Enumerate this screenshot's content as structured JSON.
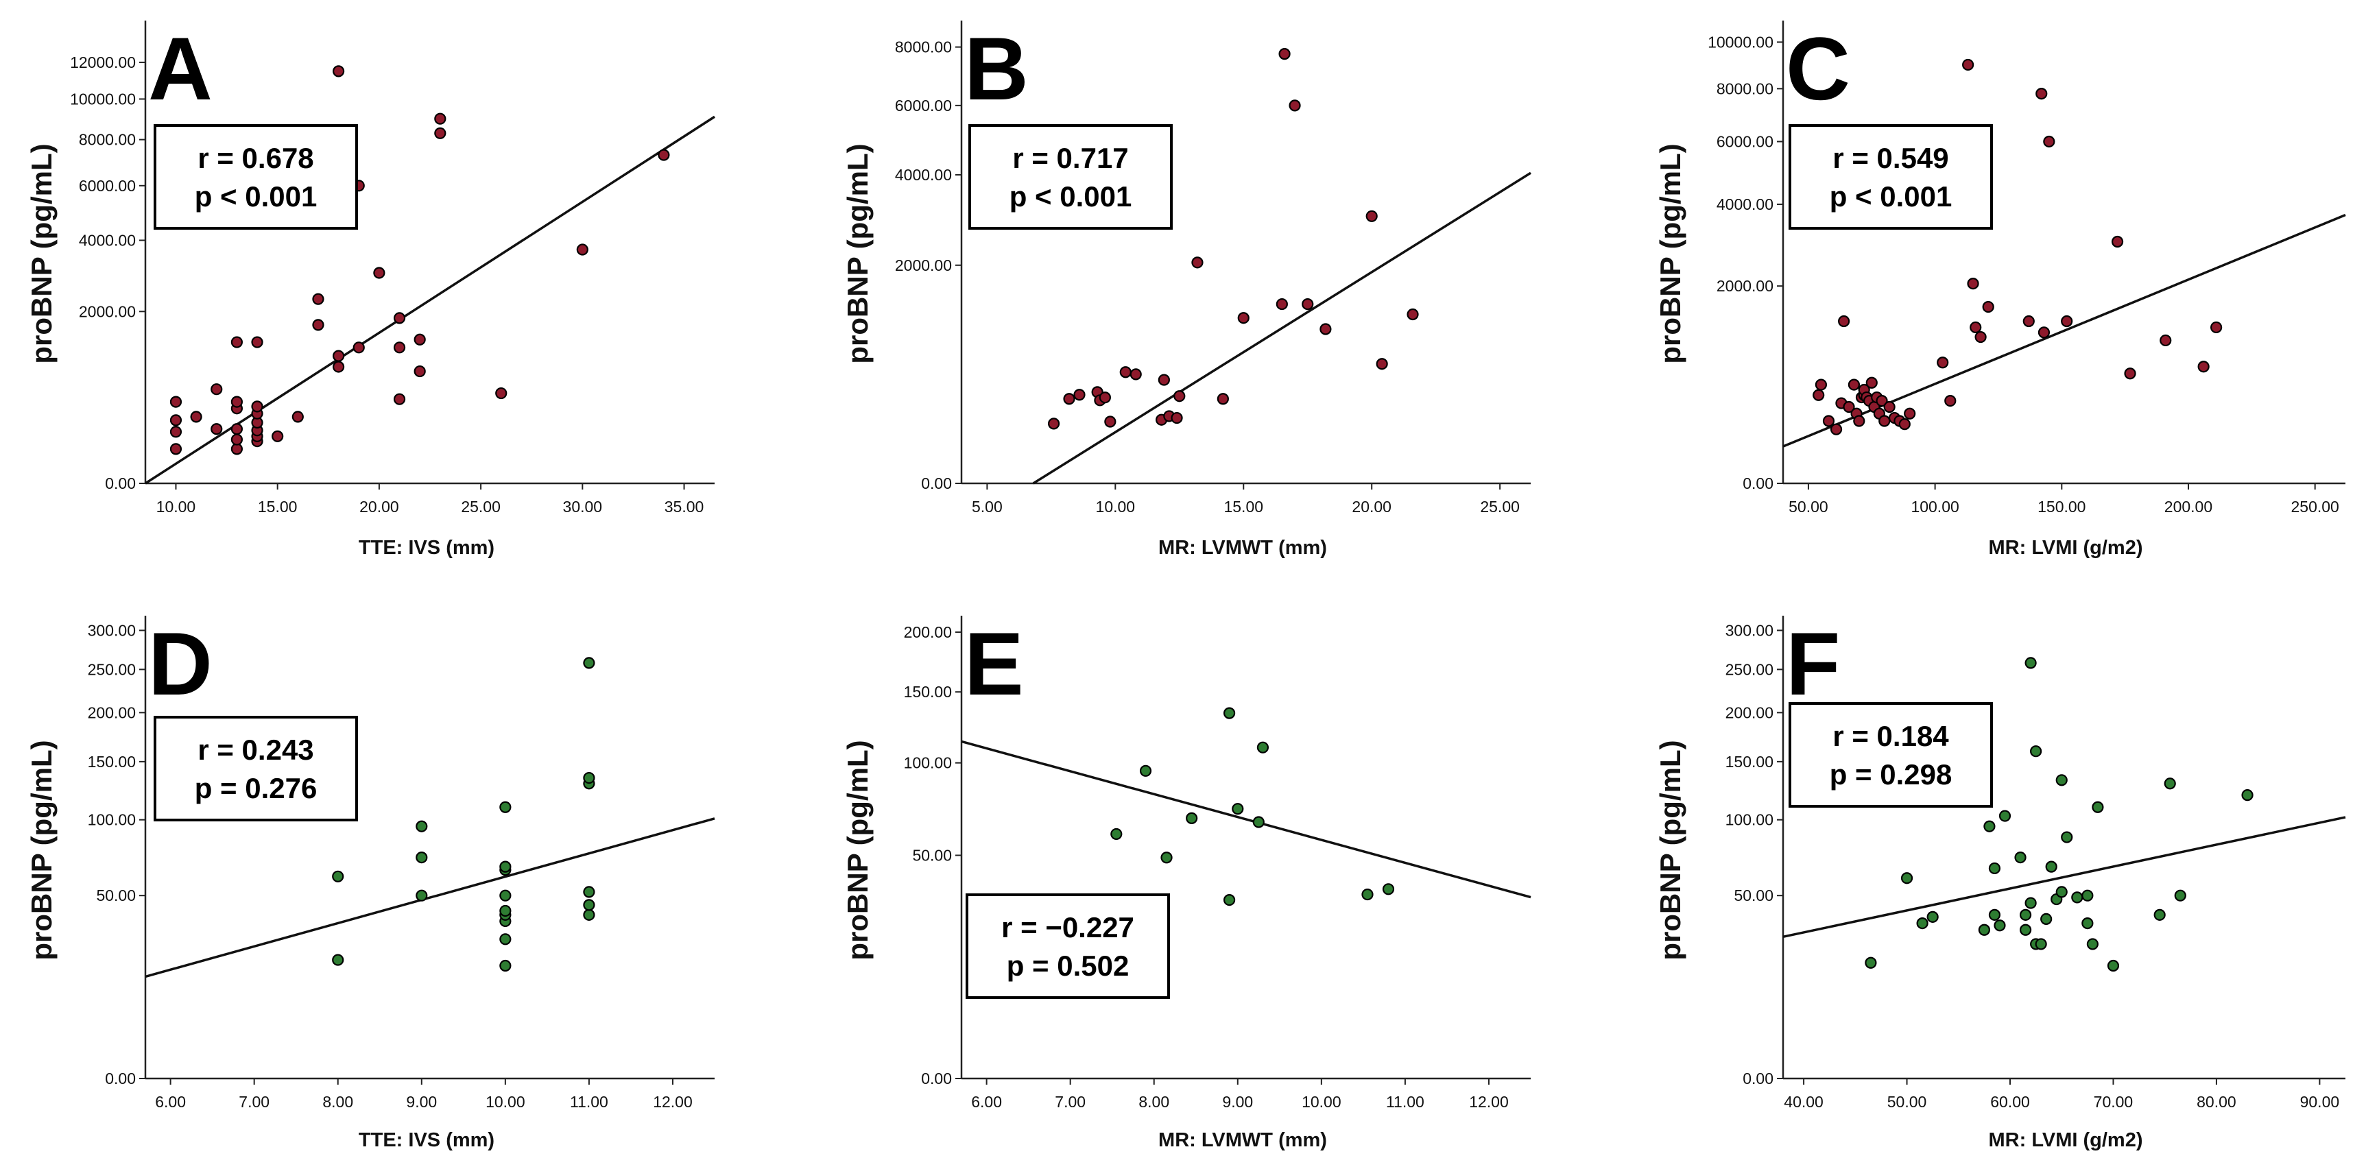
{
  "chart_data": [
    {
      "panel": "A",
      "type": "scatter",
      "xlabel": "TTE: IVS (mm)",
      "ylabel": "proBNP (pg/mL)",
      "xlim": [
        8.5,
        36.5
      ],
      "xticks": [
        10,
        15,
        20,
        25,
        30,
        35
      ],
      "xtick_labels": [
        "10.00",
        "15.00",
        "20.00",
        "25.00",
        "30.00",
        "35.00"
      ],
      "yscale": "sqrt",
      "ylim": [
        0,
        14500
      ],
      "yticks": [
        0,
        2000,
        4000,
        6000,
        8000,
        10000,
        12000
      ],
      "ytick_labels": [
        "0.00",
        "2000.00",
        "4000.00",
        "6000.00",
        "8000.00",
        "10000.00",
        "12000.00"
      ],
      "point_color": "#8e1a2c",
      "stat_r": "r = 0.678",
      "stat_p": "p < 0.001",
      "fit": [
        [
          8.5,
          0
        ],
        [
          36.5,
          9100
        ]
      ],
      "points": [
        [
          10,
          80
        ],
        [
          10,
          180
        ],
        [
          10,
          270
        ],
        [
          10,
          450
        ],
        [
          11,
          300
        ],
        [
          12,
          200
        ],
        [
          12,
          600
        ],
        [
          13,
          80
        ],
        [
          13,
          130
        ],
        [
          13,
          200
        ],
        [
          13,
          380
        ],
        [
          13,
          450
        ],
        [
          13,
          1350
        ],
        [
          14,
          120
        ],
        [
          14,
          150
        ],
        [
          14,
          190
        ],
        [
          14,
          250
        ],
        [
          14,
          330
        ],
        [
          14,
          400
        ],
        [
          14,
          1350
        ],
        [
          15,
          150
        ],
        [
          16,
          300
        ],
        [
          17,
          1700
        ],
        [
          17,
          2300
        ],
        [
          18,
          920
        ],
        [
          18,
          1100
        ],
        [
          18,
          11500
        ],
        [
          19,
          1250
        ],
        [
          19,
          6000
        ],
        [
          20,
          3000
        ],
        [
          21,
          480
        ],
        [
          21,
          1250
        ],
        [
          21,
          1850
        ],
        [
          22,
          850
        ],
        [
          22,
          1400
        ],
        [
          23,
          8300
        ],
        [
          23,
          9000
        ],
        [
          26,
          550
        ],
        [
          30,
          3700
        ],
        [
          34,
          7300
        ]
      ]
    },
    {
      "panel": "B",
      "type": "scatter",
      "xlabel": "MR: LVMWT (mm)",
      "ylabel": "proBNP (pg/mL)",
      "xlim": [
        4,
        26.2
      ],
      "xticks": [
        5,
        10,
        15,
        20,
        25
      ],
      "xtick_labels": [
        "5.00",
        "10.00",
        "15.00",
        "20.00",
        "25.00"
      ],
      "yscale": "sqrt",
      "ylim": [
        0,
        9000
      ],
      "yticks": [
        0,
        2000,
        4000,
        6000,
        8000
      ],
      "ytick_labels": [
        "0.00",
        "2000.00",
        "4000.00",
        "6000.00",
        "8000.00"
      ],
      "point_color": "#8e1a2c",
      "stat_r": "r = 0.717",
      "stat_p": "p < 0.001",
      "fit": [
        [
          6.8,
          0
        ],
        [
          26.2,
          4050
        ]
      ],
      "points": [
        [
          7.6,
          150
        ],
        [
          8.2,
          300
        ],
        [
          8.6,
          330
        ],
        [
          9.3,
          350
        ],
        [
          9.4,
          290
        ],
        [
          9.6,
          310
        ],
        [
          9.8,
          160
        ],
        [
          10.4,
          520
        ],
        [
          10.8,
          500
        ],
        [
          11.8,
          170
        ],
        [
          11.9,
          450
        ],
        [
          12.1,
          190
        ],
        [
          12.4,
          180
        ],
        [
          12.5,
          320
        ],
        [
          13.2,
          2050
        ],
        [
          14.2,
          300
        ],
        [
          15,
          1150
        ],
        [
          16.5,
          1350
        ],
        [
          16.6,
          7750
        ],
        [
          17,
          6000
        ],
        [
          17.5,
          1350
        ],
        [
          18.2,
          1000
        ],
        [
          20,
          3000
        ],
        [
          20.4,
          600
        ],
        [
          21.6,
          1200
        ]
      ]
    },
    {
      "panel": "C",
      "type": "scatter",
      "xlabel": "MR: LVMI (g/m2)",
      "ylabel": "proBNP (pg/mL)",
      "xlim": [
        40,
        262
      ],
      "xticks": [
        50,
        100,
        150,
        200,
        250
      ],
      "xtick_labels": [
        "50.00",
        "100.00",
        "150.00",
        "200.00",
        "250.00"
      ],
      "yscale": "sqrt",
      "ylim": [
        0,
        11000
      ],
      "yticks": [
        0,
        2000,
        4000,
        6000,
        8000,
        10000
      ],
      "ytick_labels": [
        "0.00",
        "2000.00",
        "4000.00",
        "6000.00",
        "8000.00",
        "10000.00"
      ],
      "point_color": "#8e1a2c",
      "stat_r": "r = 0.549",
      "stat_p": "p < 0.001",
      "fit": [
        [
          40,
          70
        ],
        [
          262,
          3700
        ]
      ],
      "points": [
        [
          54,
          400
        ],
        [
          55,
          500
        ],
        [
          58,
          200
        ],
        [
          61,
          150
        ],
        [
          63,
          330
        ],
        [
          64,
          1350
        ],
        [
          66,
          300
        ],
        [
          68,
          500
        ],
        [
          69,
          250
        ],
        [
          70,
          200
        ],
        [
          71,
          380
        ],
        [
          72,
          400
        ],
        [
          72,
          450
        ],
        [
          73,
          380
        ],
        [
          74,
          350
        ],
        [
          75,
          520
        ],
        [
          76,
          300
        ],
        [
          77,
          380
        ],
        [
          78,
          250
        ],
        [
          79,
          350
        ],
        [
          80,
          200
        ],
        [
          82,
          300
        ],
        [
          84,
          220
        ],
        [
          86,
          200
        ],
        [
          88,
          180
        ],
        [
          90,
          250
        ],
        [
          103,
          750
        ],
        [
          106,
          350
        ],
        [
          113,
          9000
        ],
        [
          115,
          2050
        ],
        [
          116,
          1250
        ],
        [
          118,
          1100
        ],
        [
          121,
          1600
        ],
        [
          137,
          1350
        ],
        [
          142,
          7800
        ],
        [
          143,
          1170
        ],
        [
          145,
          6000
        ],
        [
          152,
          1350
        ],
        [
          172,
          3000
        ],
        [
          177,
          620
        ],
        [
          191,
          1050
        ],
        [
          206,
          700
        ],
        [
          211,
          1250
        ]
      ]
    },
    {
      "panel": "D",
      "type": "scatter",
      "xlabel": "TTE: IVS (mm)",
      "ylabel": "proBNP (pg/mL)",
      "xlim": [
        5.7,
        12.5
      ],
      "xticks": [
        6,
        7,
        8,
        9,
        10,
        11,
        12
      ],
      "xtick_labels": [
        "6.00",
        "7.00",
        "8.00",
        "9.00",
        "10.00",
        "11.00",
        "12.00"
      ],
      "yscale": "sqrt",
      "ylim": [
        0,
        320
      ],
      "yticks": [
        0,
        50,
        100,
        150,
        200,
        250,
        300
      ],
      "ytick_labels": [
        "0.00",
        "50.00",
        "100.00",
        "150.00",
        "200.00",
        "250.00",
        "300.00"
      ],
      "point_color": "#2e7d32",
      "stat_r": "r = 0.243",
      "stat_p": "p = 0.276",
      "fit": [
        [
          5.7,
          15.5
        ],
        [
          12.5,
          101
        ]
      ],
      "points": [
        [
          8,
          21
        ],
        [
          8,
          61
        ],
        [
          9,
          50
        ],
        [
          9,
          73
        ],
        [
          9,
          95
        ],
        [
          10,
          19
        ],
        [
          10,
          29
        ],
        [
          10,
          37
        ],
        [
          10,
          40
        ],
        [
          10,
          42
        ],
        [
          10,
          50
        ],
        [
          10,
          65
        ],
        [
          10,
          67
        ],
        [
          10,
          110
        ],
        [
          11,
          40
        ],
        [
          11,
          45
        ],
        [
          11,
          52
        ],
        [
          11,
          130
        ],
        [
          11,
          135
        ],
        [
          11,
          258
        ]
      ]
    },
    {
      "panel": "E",
      "type": "scatter",
      "xlabel": "MR: LVMWT (mm)",
      "ylabel": "proBNP (pg/mL)",
      "xlim": [
        5.7,
        12.5
      ],
      "xticks": [
        6,
        7,
        8,
        9,
        10,
        11,
        12
      ],
      "xtick_labels": [
        "6.00",
        "7.00",
        "8.00",
        "9.00",
        "10.00",
        "11.00",
        "12.00"
      ],
      "yscale": "sqrt",
      "ylim": [
        0,
        215
      ],
      "yticks": [
        0,
        50,
        100,
        150,
        200
      ],
      "ytick_labels": [
        "0.00",
        "50.00",
        "100.00",
        "150.00",
        "200.00"
      ],
      "point_color": "#2e7d32",
      "stat_r": "r = −0.227",
      "stat_p": "p = 0.502",
      "fit": [
        [
          5.7,
          114
        ],
        [
          12.5,
          33
        ]
      ],
      "points": [
        [
          7.55,
          60
        ],
        [
          7.9,
          95
        ],
        [
          8.15,
          49
        ],
        [
          8.45,
          68
        ],
        [
          8.9,
          134
        ],
        [
          8.9,
          32
        ],
        [
          9,
          73
        ],
        [
          9.25,
          66
        ],
        [
          9.3,
          110
        ],
        [
          10.55,
          34
        ],
        [
          10.8,
          36
        ]
      ]
    },
    {
      "panel": "F",
      "type": "scatter",
      "xlabel": "MR: LVMI (g/m2)",
      "ylabel": "proBNP (pg/mL)",
      "xlim": [
        38,
        92.5
      ],
      "xticks": [
        40,
        50,
        60,
        70,
        80,
        90
      ],
      "xtick_labels": [
        "40.00",
        "50.00",
        "60.00",
        "70.00",
        "80.00",
        "90.00"
      ],
      "yscale": "sqrt",
      "ylim": [
        0,
        320
      ],
      "yticks": [
        0,
        50,
        100,
        150,
        200,
        250,
        300
      ],
      "ytick_labels": [
        "0.00",
        "50.00",
        "100.00",
        "150.00",
        "200.00",
        "250.00",
        "300.00"
      ],
      "point_color": "#2e7d32",
      "stat_r": "r = 0.184",
      "stat_p": "p = 0.298",
      "fit": [
        [
          38,
          30
        ],
        [
          92.5,
          102
        ]
      ],
      "points": [
        [
          46.5,
          20
        ],
        [
          50,
          60
        ],
        [
          51.5,
          36
        ],
        [
          52.5,
          39
        ],
        [
          57.5,
          33
        ],
        [
          58,
          95
        ],
        [
          58.5,
          66
        ],
        [
          58.5,
          40
        ],
        [
          59,
          35
        ],
        [
          59.5,
          103
        ],
        [
          61,
          73
        ],
        [
          61.5,
          40
        ],
        [
          61.5,
          33
        ],
        [
          62,
          46
        ],
        [
          62,
          258
        ],
        [
          62.5,
          160
        ],
        [
          62.5,
          27
        ],
        [
          63,
          27
        ],
        [
          63.5,
          38
        ],
        [
          64,
          67
        ],
        [
          64.5,
          48
        ],
        [
          65,
          52
        ],
        [
          65,
          133
        ],
        [
          65.5,
          87
        ],
        [
          66.5,
          49
        ],
        [
          67.5,
          50
        ],
        [
          67.5,
          36
        ],
        [
          68,
          27
        ],
        [
          68.5,
          110
        ],
        [
          70,
          19
        ],
        [
          74.5,
          40
        ],
        [
          75.5,
          130
        ],
        [
          76.5,
          50
        ],
        [
          83,
          120
        ]
      ]
    }
  ]
}
